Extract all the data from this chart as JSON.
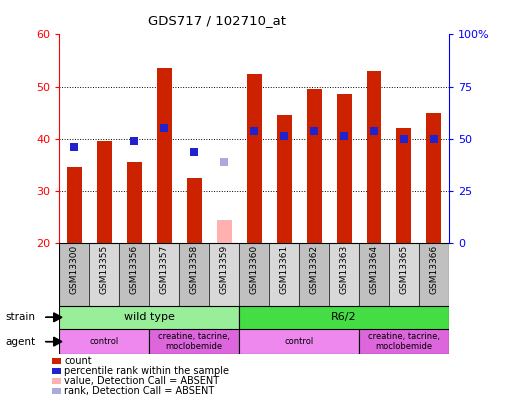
{
  "title": "GDS717 / 102710_at",
  "samples": [
    "GSM13300",
    "GSM13355",
    "GSM13356",
    "GSM13357",
    "GSM13358",
    "GSM13359",
    "GSM13360",
    "GSM13361",
    "GSM13362",
    "GSM13363",
    "GSM13364",
    "GSM13365",
    "GSM13366"
  ],
  "counts": [
    34.5,
    39.5,
    35.5,
    53.5,
    32.5,
    null,
    52.5,
    44.5,
    49.5,
    48.5,
    53.0,
    42.0,
    45.0
  ],
  "counts_absent": [
    null,
    null,
    null,
    null,
    null,
    24.5,
    null,
    null,
    null,
    null,
    null,
    null,
    null
  ],
  "percentile_ranks": [
    38.5,
    null,
    39.5,
    42.0,
    37.5,
    null,
    41.5,
    40.5,
    41.5,
    40.5,
    41.5,
    40.0,
    40.0
  ],
  "percentile_ranks_absent": [
    null,
    null,
    null,
    null,
    null,
    35.5,
    null,
    null,
    null,
    null,
    null,
    null,
    null
  ],
  "ylim_left": [
    20,
    60
  ],
  "ylim_right": [
    0,
    100
  ],
  "yticks_left": [
    20,
    30,
    40,
    50,
    60
  ],
  "yticks_right": [
    0,
    25,
    50,
    75,
    100
  ],
  "ytick_labels_right": [
    "0",
    "25",
    "50",
    "75",
    "100%"
  ],
  "bar_color": "#cc2200",
  "bar_absent_color": "#ffb0b0",
  "rank_color": "#2222cc",
  "rank_absent_color": "#aaaadd",
  "strain_groups": [
    {
      "label": "wild type",
      "start": 0,
      "end": 5,
      "color": "#99ee99"
    },
    {
      "label": "R6/2",
      "start": 6,
      "end": 12,
      "color": "#44dd44"
    }
  ],
  "agent_groups": [
    {
      "label": "control",
      "start": 0,
      "end": 2,
      "color": "#ee88ee"
    },
    {
      "label": "creatine, tacrine,\nmoclobemide",
      "start": 3,
      "end": 5,
      "color": "#dd66dd"
    },
    {
      "label": "control",
      "start": 6,
      "end": 9,
      "color": "#ee88ee"
    },
    {
      "label": "creatine, tacrine,\nmoclobemide",
      "start": 10,
      "end": 12,
      "color": "#dd66dd"
    }
  ],
  "legend_items": [
    {
      "label": "count",
      "color": "#cc2200"
    },
    {
      "label": "percentile rank within the sample",
      "color": "#2222cc"
    },
    {
      "label": "value, Detection Call = ABSENT",
      "color": "#ffb0b0"
    },
    {
      "label": "rank, Detection Call = ABSENT",
      "color": "#aaaadd"
    }
  ]
}
